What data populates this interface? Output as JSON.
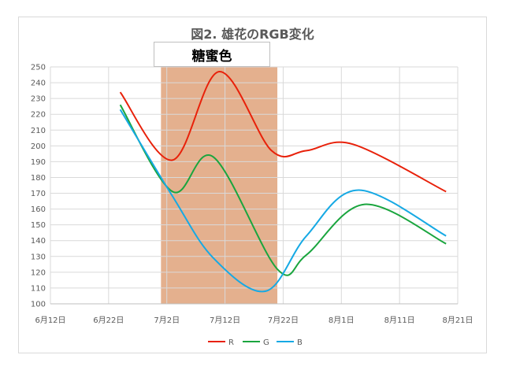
{
  "chart_data": {
    "type": "line",
    "title": "図2. 雄花のRGB変化",
    "band_label": "糖蜜色",
    "band_range": [
      "7月1日",
      "7月21日"
    ],
    "x_ticks": [
      "6月12日",
      "6月22日",
      "7月2日",
      "7月12日",
      "7月22日",
      "8月1日",
      "8月11日",
      "8月21日"
    ],
    "y_ticks": [
      100,
      110,
      120,
      130,
      140,
      150,
      160,
      170,
      180,
      190,
      200,
      210,
      220,
      230,
      240,
      250
    ],
    "xlim": [
      "6月12日",
      "8月21日"
    ],
    "ylim": [
      100,
      250
    ],
    "grid": true,
    "legend_position": "bottom",
    "series": [
      {
        "name": "R",
        "color": "#e8210a",
        "points": [
          {
            "x": "6月24日",
            "y": 234
          },
          {
            "x": "7月3日",
            "y": 191
          },
          {
            "x": "7月11日",
            "y": 247
          },
          {
            "x": "7月20日",
            "y": 197
          },
          {
            "x": "7月26日",
            "y": 197
          },
          {
            "x": "8月3日",
            "y": 201
          },
          {
            "x": "8月19日",
            "y": 171
          }
        ]
      },
      {
        "name": "G",
        "color": "#1aa53e",
        "points": [
          {
            "x": "6月24日",
            "y": 226
          },
          {
            "x": "7月3日",
            "y": 171
          },
          {
            "x": "7月10日",
            "y": 193
          },
          {
            "x": "7月21日",
            "y": 122
          },
          {
            "x": "7月26日",
            "y": 131
          },
          {
            "x": "8月5日",
            "y": 163
          },
          {
            "x": "8月19日",
            "y": 138
          }
        ]
      },
      {
        "name": "B",
        "color": "#16a9e4",
        "points": [
          {
            "x": "6月24日",
            "y": 223
          },
          {
            "x": "7月3日",
            "y": 168
          },
          {
            "x": "7月10日",
            "y": 129
          },
          {
            "x": "7月19日",
            "y": 108
          },
          {
            "x": "7月26日",
            "y": 143
          },
          {
            "x": "8月4日",
            "y": 172
          },
          {
            "x": "8月19日",
            "y": 143
          }
        ]
      }
    ]
  }
}
